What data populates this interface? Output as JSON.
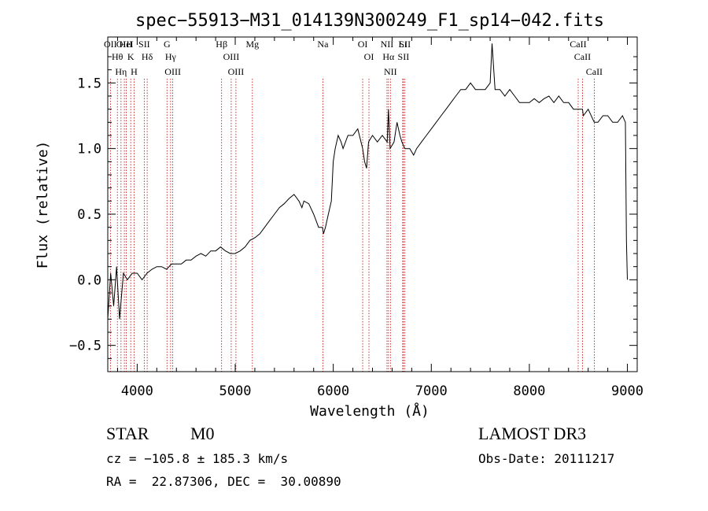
{
  "chart_data": {
    "type": "line",
    "title": "spec−55913−M31_014139N300249_F1_sp14−042.fits",
    "xlabel": "Wavelength (Å)",
    "ylabel": "Flux (relative)",
    "xlim": [
      3700,
      9100
    ],
    "ylim": [
      -0.7,
      1.85
    ],
    "x_ticks": [
      4000,
      5000,
      6000,
      7000,
      8000,
      9000
    ],
    "y_ticks": [
      -0.5,
      0.0,
      0.5,
      1.0,
      1.5
    ],
    "y_tick_labels": [
      "−0.5",
      "0.0",
      "0.5",
      "1.0",
      "1.5"
    ],
    "grid": false,
    "legend": "none",
    "line_color": "#000000",
    "marker_color": "#c00000",
    "series": [
      {
        "x": [
          3700,
          3730,
          3760,
          3790,
          3820,
          3860,
          3900,
          3950,
          4000,
          4050,
          4100,
          4150,
          4200,
          4250,
          4300,
          4350,
          4400,
          4450,
          4500,
          4550,
          4600,
          4650,
          4700,
          4750,
          4800,
          4850,
          4900,
          4950,
          5000,
          5050,
          5100,
          5150,
          5200,
          5250,
          5300,
          5350,
          5400,
          5450,
          5500,
          5550,
          5600,
          5650,
          5680,
          5700,
          5750,
          5800,
          5850,
          5890,
          5900,
          5920,
          5950,
          5980,
          6000,
          6020,
          6050,
          6080,
          6100,
          6150,
          6200,
          6250,
          6300,
          6320,
          6340,
          6360,
          6400,
          6450,
          6500,
          6550,
          6563,
          6580,
          6620,
          6650,
          6680,
          6700,
          6730,
          6750,
          6780,
          6820,
          6850,
          6900,
          6950,
          7000,
          7050,
          7100,
          7150,
          7200,
          7250,
          7300,
          7350,
          7400,
          7450,
          7500,
          7550,
          7600,
          7620,
          7650,
          7700,
          7750,
          7800,
          7850,
          7900,
          7950,
          8000,
          8050,
          8100,
          8150,
          8200,
          8250,
          8300,
          8350,
          8400,
          8450,
          8500,
          8542,
          8550,
          8600,
          8662,
          8700,
          8750,
          8800,
          8850,
          8900,
          8950,
          8980,
          8990,
          9000
        ],
        "y": [
          -0.3,
          0.05,
          -0.2,
          0.1,
          -0.3,
          0.05,
          0.0,
          0.05,
          0.05,
          0.0,
          0.05,
          0.08,
          0.1,
          0.1,
          0.08,
          0.12,
          0.12,
          0.12,
          0.15,
          0.15,
          0.18,
          0.2,
          0.18,
          0.22,
          0.22,
          0.25,
          0.22,
          0.2,
          0.2,
          0.22,
          0.25,
          0.3,
          0.32,
          0.35,
          0.4,
          0.45,
          0.5,
          0.55,
          0.58,
          0.62,
          0.65,
          0.6,
          0.55,
          0.6,
          0.58,
          0.5,
          0.4,
          0.4,
          0.35,
          0.4,
          0.5,
          0.6,
          0.9,
          1.0,
          1.1,
          1.05,
          1.0,
          1.1,
          1.1,
          1.15,
          1.0,
          0.9,
          0.85,
          1.05,
          1.1,
          1.05,
          1.1,
          1.05,
          1.3,
          1.0,
          1.05,
          1.2,
          1.1,
          1.05,
          1.0,
          1.0,
          1.0,
          0.95,
          1.0,
          1.05,
          1.1,
          1.15,
          1.2,
          1.25,
          1.3,
          1.35,
          1.4,
          1.45,
          1.45,
          1.5,
          1.45,
          1.45,
          1.45,
          1.5,
          1.8,
          1.45,
          1.45,
          1.4,
          1.45,
          1.4,
          1.35,
          1.35,
          1.35,
          1.38,
          1.35,
          1.38,
          1.4,
          1.35,
          1.4,
          1.35,
          1.35,
          1.3,
          1.3,
          1.3,
          1.25,
          1.3,
          1.2,
          1.2,
          1.25,
          1.25,
          1.2,
          1.2,
          1.25,
          1.2,
          0.3,
          0.0
        ]
      }
    ],
    "line_markers": [
      {
        "label": "OII",
        "x": 3727
      },
      {
        "label": "Hθ",
        "x": 3798
      },
      {
        "label": "OIII",
        "x": 3869
      },
      {
        "label": "HeI",
        "x": 3889
      },
      {
        "label": "Hη",
        "x": 3835
      },
      {
        "label": "K",
        "x": 3934
      },
      {
        "label": "H",
        "x": 3968
      },
      {
        "label": "SII",
        "x": 4072
      },
      {
        "label": "Hδ",
        "x": 4102
      },
      {
        "label": "G",
        "x": 4304
      },
      {
        "label": "Hγ",
        "x": 4341
      },
      {
        "label": "OIII",
        "x": 4363
      },
      {
        "label": "Hβ",
        "x": 4861
      },
      {
        "label": "OIII",
        "x": 4959
      },
      {
        "label": "OIII",
        "x": 5007
      },
      {
        "label": "Mg",
        "x": 5175
      },
      {
        "label": "Na",
        "x": 5894
      },
      {
        "label": "OI",
        "x": 6300
      },
      {
        "label": "OI",
        "x": 6364
      },
      {
        "label": "NII",
        "x": 6548
      },
      {
        "label": "Hα",
        "x": 6563
      },
      {
        "label": "NII",
        "x": 6583
      },
      {
        "label": "Li",
        "x": 6708
      },
      {
        "label": "SII",
        "x": 6716
      },
      {
        "label": "SII",
        "x": 6731
      },
      {
        "label": "CaII",
        "x": 8498
      },
      {
        "label": "CaII",
        "x": 8542
      },
      {
        "label": "CaII",
        "x": 8662
      }
    ]
  },
  "info": {
    "object_class": "STAR",
    "subclass": "M0",
    "survey": "LAMOST DR3",
    "cz": "cz = −105.8 ± 185.3 km/s",
    "obs_date": "Obs-Date: 20111217",
    "coords": "RA =  22.87306, DEC =  30.00890"
  }
}
